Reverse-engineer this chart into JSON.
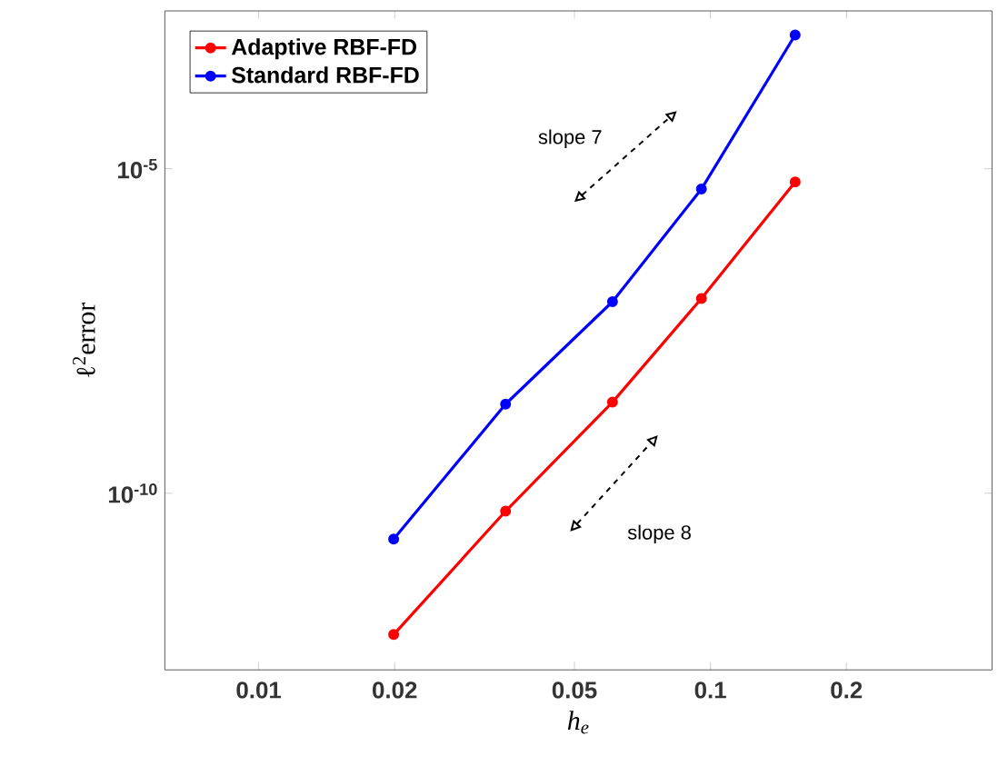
{
  "chart_data": {
    "type": "line",
    "xlabel": "h$_{e}$",
    "ylabel": "ℓ$^{2}$error",
    "log": "xy",
    "xlim": [
      0.0062,
      0.42
    ],
    "ylim": [
      1.9e-13,
      0.0027
    ],
    "xticks": [
      0.01,
      0.02,
      0.05,
      0.1,
      0.2
    ],
    "yticks": [
      {
        "value": 1e-10,
        "label": "10$^{-10}$"
      },
      {
        "value": 1e-05,
        "label": "10$^{-5}$"
      }
    ],
    "x": [
      0.0199,
      0.0352,
      0.0607,
      0.0955,
      0.154
    ],
    "series": [
      {
        "name": "Adaptive RBF-FD",
        "color": "#ff0000",
        "values": [
          6.65e-13,
          5.3e-11,
          2.53e-09,
          1e-07,
          6.25e-06
        ]
      },
      {
        "name": "Standard RBF-FD",
        "color": "#0000ff",
        "values": [
          1.97e-11,
          2.36e-09,
          8.95e-08,
          4.86e-06,
          0.00115
        ]
      }
    ],
    "annotations": [
      "slope 7",
      "slope 8"
    ],
    "legend": "top left",
    "marker": "circle",
    "line_style": "solid",
    "grid": false
  }
}
